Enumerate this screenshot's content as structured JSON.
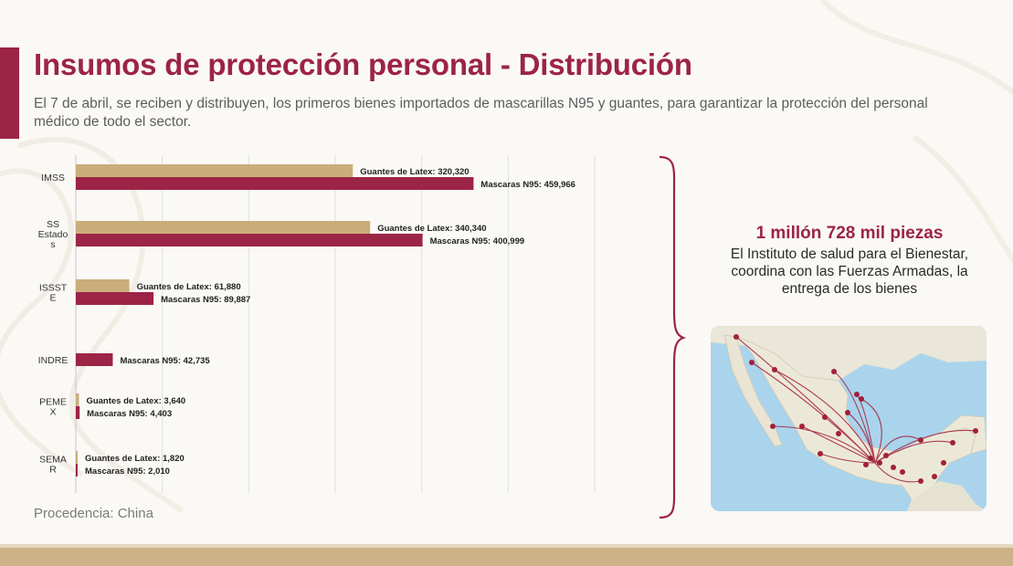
{
  "header": {
    "title": "Insumos de protección personal - Distribución",
    "subtitle": "El 7 de abril, se reciben y distribuyen, los primeros bienes importados de mascarillas N95 y guantes, para garantizar la protección del personal médico de todo el sector."
  },
  "right_panel": {
    "highlight": "1 millón 728 mil piezas",
    "description": "El Instituto de salud para el Bienestar, coordina con las Fuerzas Armadas, la entrega de los bienes",
    "map_icon": "mexico-distribution-map"
  },
  "footer": {
    "source": "Procedencia: China"
  },
  "colors": {
    "accent": "#9c2446",
    "guantes": "#c9ad7a",
    "mascaras": "#9c2446",
    "strip": "#cbb287"
  },
  "chart_data": {
    "type": "bar",
    "orientation": "horizontal",
    "categories": [
      [
        "IMSS"
      ],
      [
        "SS",
        "Estado",
        "s"
      ],
      [
        "ISSST",
        "E"
      ],
      [
        "INDRE"
      ],
      [
        "PEME",
        "X"
      ],
      [
        "SEMA",
        "R"
      ]
    ],
    "series": [
      {
        "name": "Guantes de Latex",
        "values": [
          320320,
          340340,
          61880,
          null,
          3640,
          1820
        ],
        "labels": [
          "Guantes de Latex: 320,320",
          "Guantes de Latex: 340,340",
          "Guantes de Latex: 61,880",
          "",
          "Guantes de Latex: 3,640",
          "Guantes de Latex: 1,820"
        ]
      },
      {
        "name": "Mascaras N95",
        "values": [
          459966,
          400999,
          89887,
          42735,
          4403,
          2010
        ],
        "labels": [
          "Mascaras N95: 459,966",
          "Mascaras N95: 400,999",
          "Mascaras N95: 89,887",
          "Mascaras N95: 42,735",
          "Mascaras N95: 4,403",
          "Mascaras N95: 2,010"
        ]
      }
    ],
    "xlim": [
      0,
      600000
    ],
    "grid": true,
    "legend": "none"
  }
}
